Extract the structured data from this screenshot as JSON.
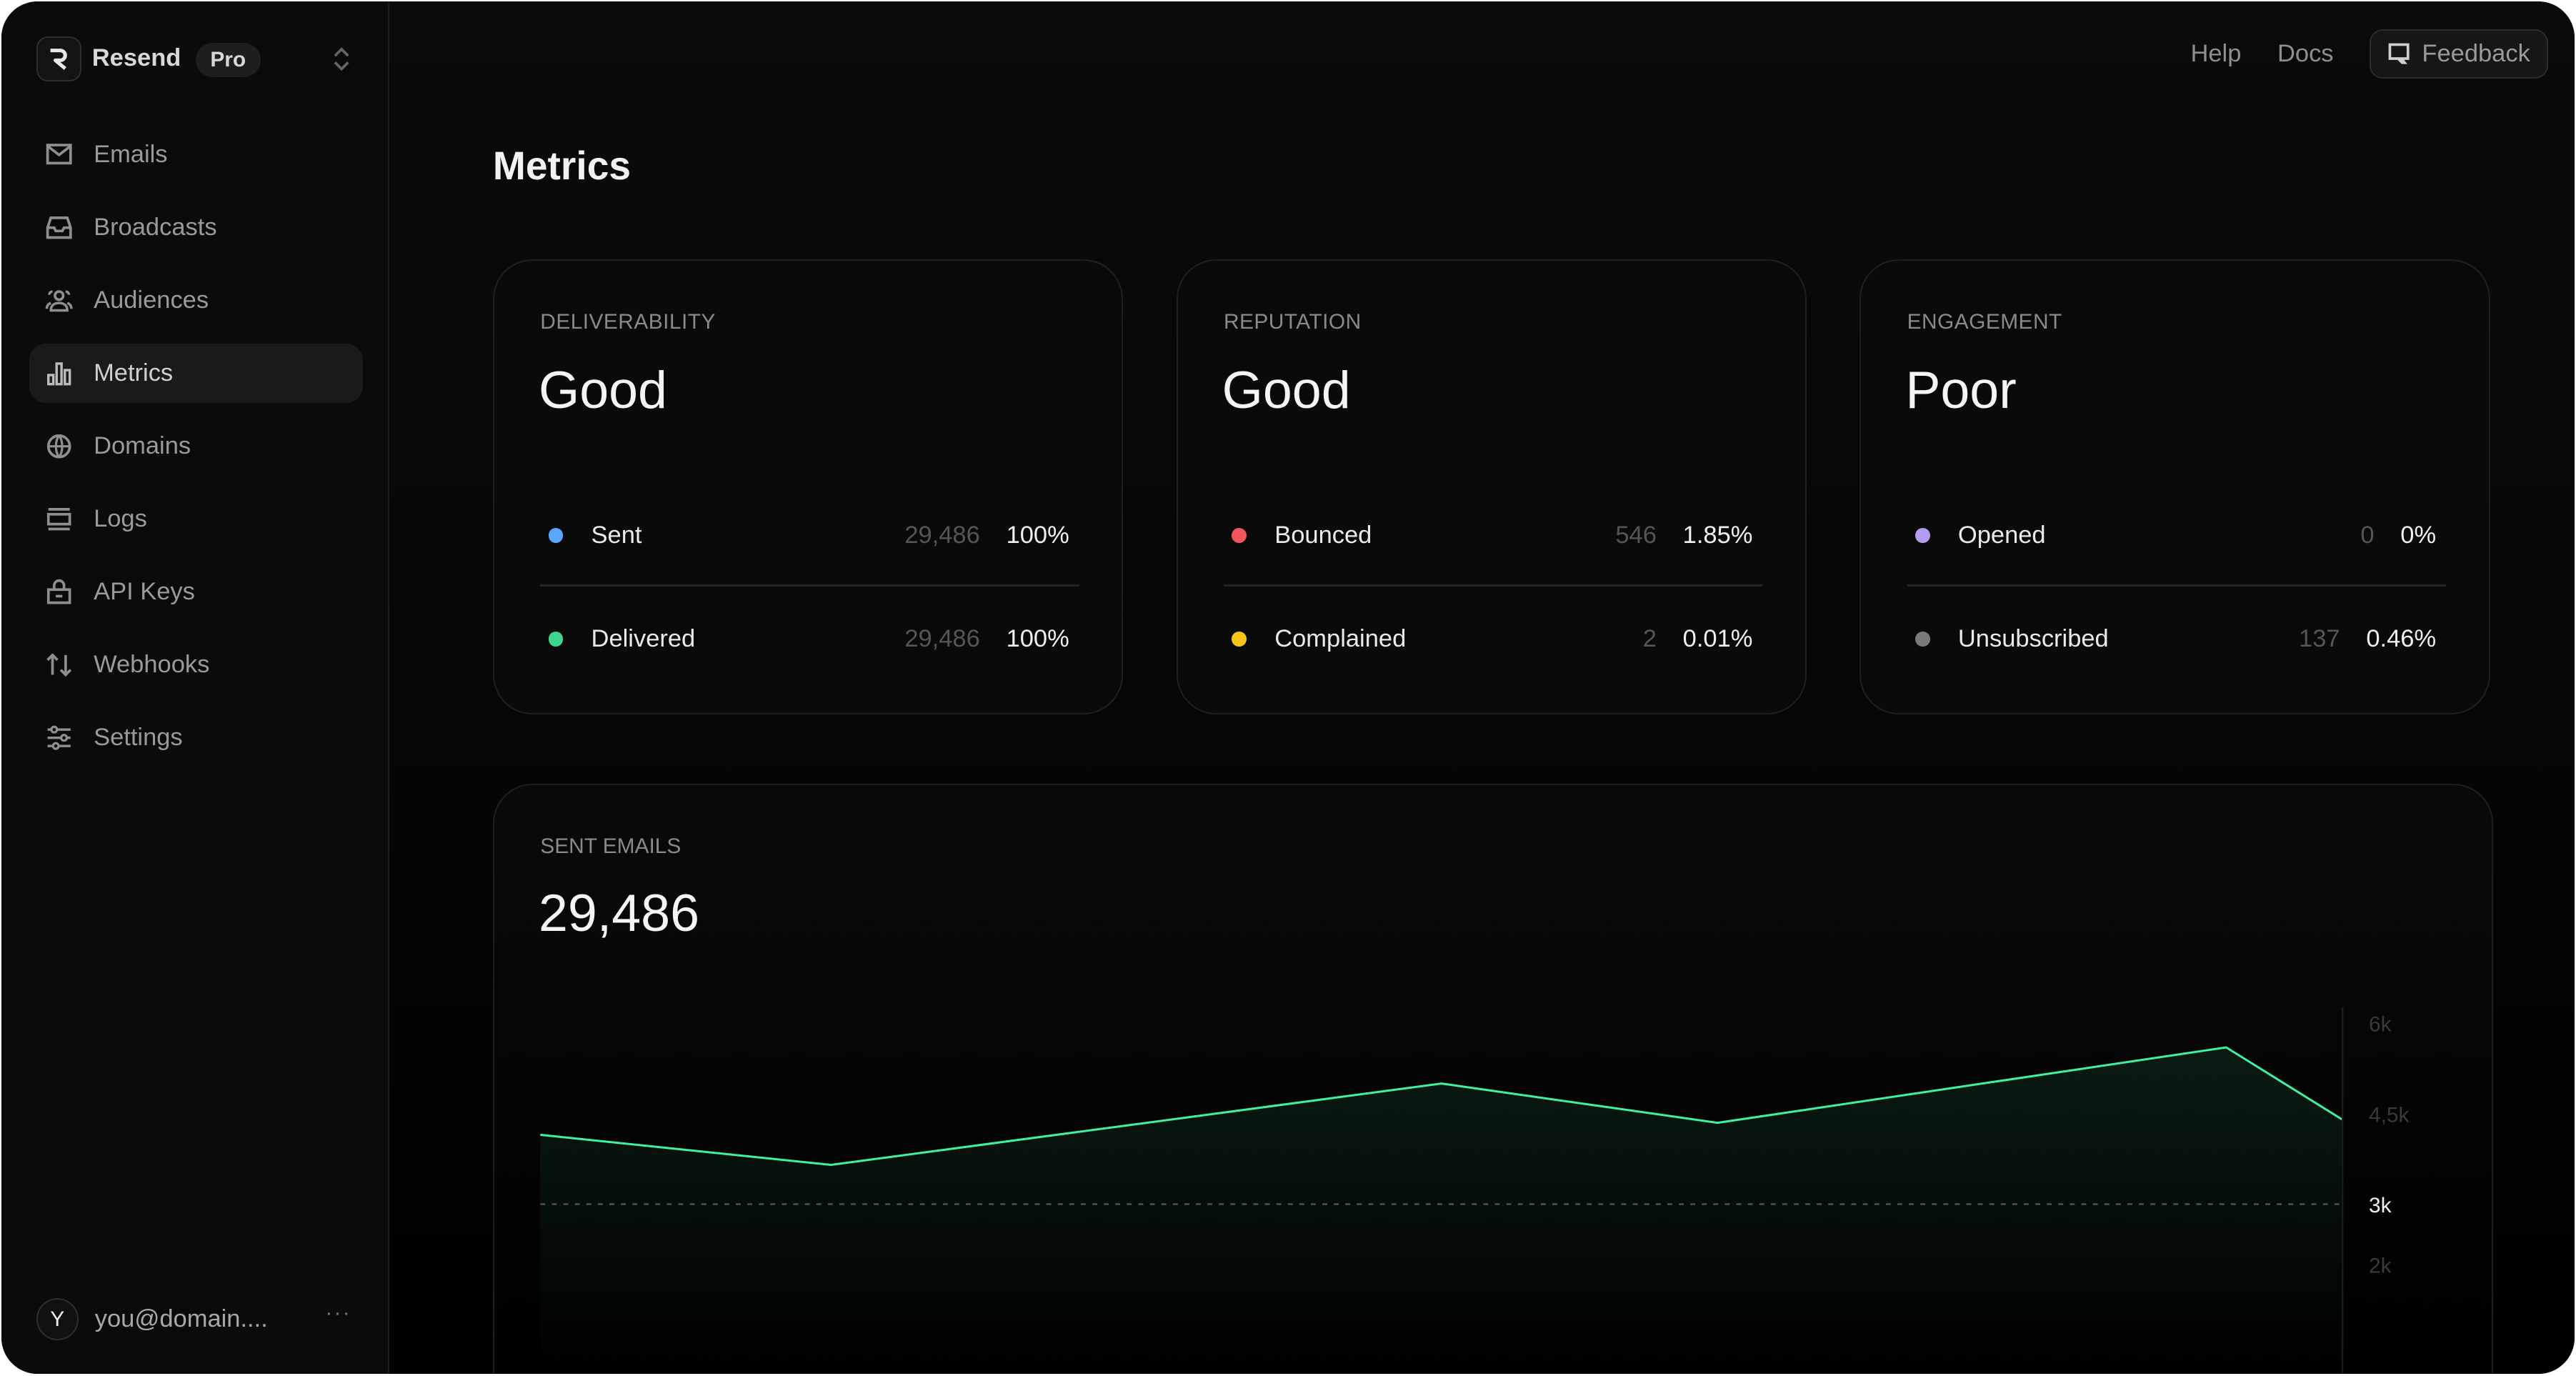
{
  "app": {
    "brand": "Resend",
    "plan_badge": "Pro"
  },
  "sidebar": {
    "items": [
      {
        "label": "Emails",
        "icon": "mail-icon"
      },
      {
        "label": "Broadcasts",
        "icon": "inbox-icon"
      },
      {
        "label": "Audiences",
        "icon": "users-icon"
      },
      {
        "label": "Metrics",
        "icon": "bar-chart-icon",
        "active": true
      },
      {
        "label": "Domains",
        "icon": "globe-icon"
      },
      {
        "label": "Logs",
        "icon": "logs-icon"
      },
      {
        "label": "API Keys",
        "icon": "lock-icon"
      },
      {
        "label": "Webhooks",
        "icon": "arrows-up-down-icon"
      },
      {
        "label": "Settings",
        "icon": "sliders-icon"
      }
    ],
    "user": {
      "initial": "Y",
      "email": "you@domain....",
      "more": "···"
    }
  },
  "header": {
    "help": "Help",
    "docs": "Docs",
    "feedback": "Feedback"
  },
  "page": {
    "title": "Metrics"
  },
  "cards": [
    {
      "label": "DELIVERABILITY",
      "status": "Good",
      "rows": [
        {
          "name": "Sent",
          "count": "29,486",
          "pct": "100%",
          "color": "#5aa7ff"
        },
        {
          "name": "Delivered",
          "count": "29,486",
          "pct": "100%",
          "color": "#3ed58e"
        }
      ]
    },
    {
      "label": "REPUTATION",
      "status": "Good",
      "rows": [
        {
          "name": "Bounced",
          "count": "546",
          "pct": "1.85%",
          "color": "#f0565b"
        },
        {
          "name": "Complained",
          "count": "2",
          "pct": "0.01%",
          "color": "#f6c515"
        }
      ]
    },
    {
      "label": "ENGAGEMENT",
      "status": "Poor",
      "rows": [
        {
          "name": "Opened",
          "count": "0",
          "pct": "0%",
          "color": "#b49cf5"
        },
        {
          "name": "Unsubscribed",
          "count": "137",
          "pct": "0.46%",
          "color": "#7a7a7a"
        }
      ]
    }
  ],
  "sent_emails": {
    "label": "SENT EMAILS",
    "total": "29,486"
  },
  "chart_data": {
    "type": "area",
    "x": [
      0,
      1,
      3.1,
      4.05,
      5.8,
      6.2
    ],
    "values": [
      4150,
      3650,
      5000,
      4350,
      5600,
      4400
    ],
    "ytick_labels": [
      {
        "value": 6000,
        "label": "6k"
      },
      {
        "value": 4500,
        "label": "4,5k"
      },
      {
        "value": 3000,
        "label": "3k",
        "highlight": true
      },
      {
        "value": 2000,
        "label": "2k"
      }
    ],
    "reference_line": 3000,
    "line_color": "#3df2a0",
    "grid": false
  }
}
